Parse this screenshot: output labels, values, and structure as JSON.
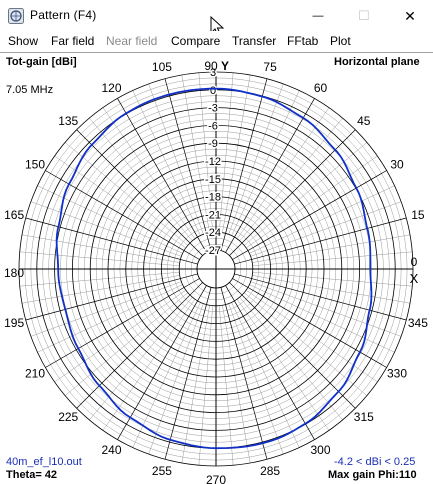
{
  "window": {
    "title": "Pattern   (F4)",
    "minimize_glyph": "—",
    "maximize_glyph": "☐",
    "close_glyph": "✕"
  },
  "menu": {
    "items": [
      {
        "label": "Show",
        "enabled": true
      },
      {
        "label": "Far field",
        "enabled": true
      },
      {
        "label": "Near field",
        "enabled": false
      },
      {
        "label": "Compare",
        "enabled": true
      },
      {
        "label": "Transfer",
        "enabled": true
      },
      {
        "label": "FFtab",
        "enabled": true
      },
      {
        "label": "Plot",
        "enabled": true
      }
    ]
  },
  "plot": {
    "top_left_label": "Tot-gain [dBi]",
    "top_right_label": "Horizontal plane",
    "frequency": "7.05 MHz",
    "y_axis_label": "Y",
    "x_axis_label": "X",
    "file_name": "40m_ef_l10.out",
    "theta": "Theta= 42",
    "gain_range": "-4.2 < dBi < 0.25",
    "max_gain": "Max gain Phi:110"
  },
  "chart_data": {
    "type": "polar",
    "title": "",
    "radial_unit": "dBi",
    "radial_ticks": [
      3,
      0,
      -3,
      -6,
      -9,
      -12,
      -15,
      -18,
      -21,
      -24,
      -27
    ],
    "radial_range": [
      -27,
      3
    ],
    "angle_ticks": [
      0,
      15,
      30,
      45,
      60,
      75,
      90,
      105,
      120,
      135,
      150,
      165,
      180,
      195,
      210,
      225,
      240,
      255,
      270,
      285,
      300,
      315,
      330,
      345
    ],
    "series": [
      {
        "color": "#1030c8",
        "phi": [
          0,
          15,
          30,
          45,
          60,
          75,
          90,
          105,
          110,
          120,
          135,
          150,
          165,
          180,
          195,
          210,
          225,
          240,
          255,
          270,
          285,
          290,
          300,
          315,
          330,
          345
        ],
        "gain": [
          -4.2,
          -3.8,
          -2.9,
          -1.8,
          -0.8,
          -0.1,
          0.2,
          0.25,
          0.25,
          0.1,
          -0.6,
          -1.6,
          -2.7,
          -3.6,
          -3.9,
          -3.4,
          -2.4,
          -1.3,
          -0.4,
          0.0,
          0.2,
          0.2,
          -0.1,
          -1.0,
          -2.2,
          -3.4
        ]
      }
    ]
  },
  "colors": {
    "grid_major": "#000000",
    "grid_minor": "#9a9a9a",
    "trace": "#1030c8",
    "info_text": "#1a2fb8"
  }
}
